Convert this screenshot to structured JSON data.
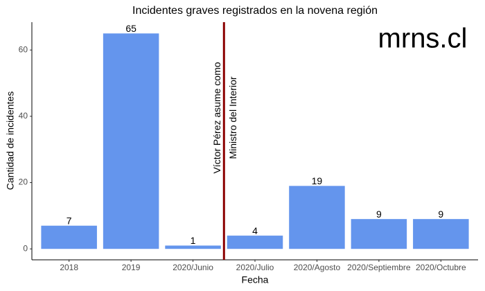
{
  "chart_data": {
    "type": "bar",
    "title": "Incidentes graves registrados en la novena región",
    "x_label": "Fecha",
    "y_label": "Cantidad de incidentes",
    "categories": [
      "2018",
      "2019",
      "2020/Junio",
      "2020/Julio",
      "2020/Agosto",
      "2020/Septiembre",
      "2020/Octubre"
    ],
    "values": [
      7,
      65,
      1,
      4,
      19,
      9,
      9
    ],
    "color": "#6495ed",
    "ylim": [
      -3.3,
      68.4
    ],
    "yticks": [
      0,
      20,
      40,
      60
    ],
    "grid": false,
    "annotations": [
      "Víctor Pérez asume como",
      "Ministro del Interior"
    ],
    "annotation_color": "#8b0000",
    "watermark": "mrns.cl"
  }
}
